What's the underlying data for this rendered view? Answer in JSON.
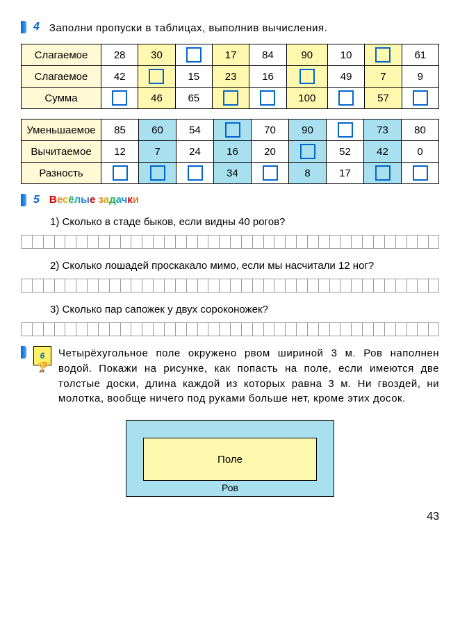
{
  "task4": {
    "number": "4",
    "instruction": "Заполни пропуски в таблицах, выполнив вычисления.",
    "table1": {
      "rows": [
        {
          "label": "Слагаемое",
          "cells": [
            {
              "v": "28",
              "c": "white"
            },
            {
              "v": "30",
              "c": "yellow"
            },
            {
              "v": "□",
              "c": "white"
            },
            {
              "v": "17",
              "c": "yellow"
            },
            {
              "v": "84",
              "c": "white"
            },
            {
              "v": "90",
              "c": "yellow"
            },
            {
              "v": "10",
              "c": "white"
            },
            {
              "v": "□",
              "c": "yellow"
            },
            {
              "v": "61",
              "c": "white"
            }
          ]
        },
        {
          "label": "Слагаемое",
          "cells": [
            {
              "v": "42",
              "c": "white"
            },
            {
              "v": "□",
              "c": "yellow"
            },
            {
              "v": "15",
              "c": "white"
            },
            {
              "v": "23",
              "c": "yellow"
            },
            {
              "v": "16",
              "c": "white"
            },
            {
              "v": "□",
              "c": "yellow"
            },
            {
              "v": "49",
              "c": "white"
            },
            {
              "v": "7",
              "c": "yellow"
            },
            {
              "v": "9",
              "c": "white"
            }
          ]
        },
        {
          "label": "Сумма",
          "cells": [
            {
              "v": "□",
              "c": "white"
            },
            {
              "v": "46",
              "c": "yellow"
            },
            {
              "v": "65",
              "c": "white"
            },
            {
              "v": "□",
              "c": "yellow"
            },
            {
              "v": "□",
              "c": "white"
            },
            {
              "v": "100",
              "c": "yellow"
            },
            {
              "v": "□",
              "c": "white"
            },
            {
              "v": "57",
              "c": "yellow"
            },
            {
              "v": "□",
              "c": "white"
            }
          ]
        }
      ]
    },
    "table2": {
      "rows": [
        {
          "label": "Уменьшаемое",
          "cells": [
            {
              "v": "85",
              "c": "white"
            },
            {
              "v": "60",
              "c": "blue"
            },
            {
              "v": "54",
              "c": "white"
            },
            {
              "v": "□",
              "c": "blue"
            },
            {
              "v": "70",
              "c": "white"
            },
            {
              "v": "90",
              "c": "blue"
            },
            {
              "v": "□",
              "c": "white"
            },
            {
              "v": "73",
              "c": "blue"
            },
            {
              "v": "80",
              "c": "white"
            }
          ]
        },
        {
          "label": "Вычитаемое",
          "cells": [
            {
              "v": "12",
              "c": "white"
            },
            {
              "v": "7",
              "c": "blue"
            },
            {
              "v": "24",
              "c": "white"
            },
            {
              "v": "16",
              "c": "blue"
            },
            {
              "v": "20",
              "c": "white"
            },
            {
              "v": "□",
              "c": "blue"
            },
            {
              "v": "52",
              "c": "white"
            },
            {
              "v": "42",
              "c": "blue"
            },
            {
              "v": "0",
              "c": "white"
            }
          ]
        },
        {
          "label": "Разность",
          "cells": [
            {
              "v": "□",
              "c": "white"
            },
            {
              "v": "□",
              "c": "blue"
            },
            {
              "v": "□",
              "c": "white"
            },
            {
              "v": "34",
              "c": "blue"
            },
            {
              "v": "□",
              "c": "white"
            },
            {
              "v": "8",
              "c": "blue"
            },
            {
              "v": "17",
              "c": "white"
            },
            {
              "v": "□",
              "c": "blue"
            },
            {
              "v": "□",
              "c": "white"
            }
          ]
        }
      ]
    }
  },
  "task5": {
    "number": "5",
    "title_words": [
      "В",
      "е",
      "с",
      "ё",
      "л",
      "ы",
      "е",
      " ",
      "з",
      "а",
      "д",
      "а",
      "ч",
      "к",
      "и"
    ],
    "q1": "1) Сколько в стаде быков, если видны 40 рогов?",
    "q2": "2) Сколько лошадей проскакало мимо, если мы насчитали 12 ног?",
    "q3": "3) Сколько пар сапожек у двух сороконожек?",
    "grid_cells": 38
  },
  "task6": {
    "number": "6",
    "text": "Четырёхугольное поле окружено рвом шириной 3 м. Ров наполнен водой. Покажи на рисунке, как попасть на поле, если имеются две толстые доски, длина каждой из которых равна 3 м. Ни гвоздей, ни молотка, вообще ничего под руками больше нет, кроме этих досок.",
    "field_label": "Поле",
    "moat_label": "Ров"
  },
  "page_number": "43",
  "colors": {
    "blue_accent": "#0066cc",
    "yellow_bg": "#fff9b0",
    "yellow_label": "#fff9d6",
    "blue_bg": "#a8e0f0",
    "border": "#000000"
  }
}
